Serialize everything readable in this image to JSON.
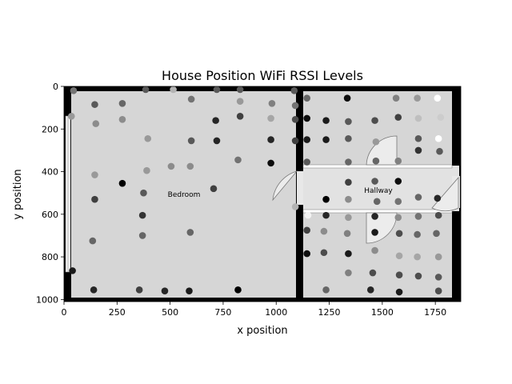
{
  "chart_data": {
    "type": "scatter",
    "title": "House Position WiFi RSSI Levels",
    "xlabel": "x position",
    "ylabel": "y position",
    "xlim": [
      0,
      1870
    ],
    "ylim": [
      1010,
      0
    ],
    "y_axis_inverted": true,
    "xticks": [
      0,
      250,
      500,
      750,
      1000,
      1250,
      1500,
      1750
    ],
    "yticks": [
      0,
      200,
      400,
      600,
      800,
      1000
    ],
    "background": "grayscale floor plan of a house",
    "room_labels": [
      "Bedroom",
      "Hallway"
    ],
    "marker_color_scale": "grayscale (white = strong, black = weak)",
    "points": [
      {
        "x": 45,
        "y": 20,
        "v": 0.45
      },
      {
        "x": 385,
        "y": 15,
        "v": 0.35
      },
      {
        "x": 515,
        "y": 15,
        "v": 0.7
      },
      {
        "x": 720,
        "y": 15,
        "v": 0.35
      },
      {
        "x": 830,
        "y": 15,
        "v": 0.35
      },
      {
        "x": 1085,
        "y": 20,
        "v": 0.35
      },
      {
        "x": 145,
        "y": 85,
        "v": 0.35
      },
      {
        "x": 275,
        "y": 80,
        "v": 0.4
      },
      {
        "x": 600,
        "y": 60,
        "v": 0.45
      },
      {
        "x": 830,
        "y": 70,
        "v": 0.6
      },
      {
        "x": 980,
        "y": 80,
        "v": 0.5
      },
      {
        "x": 1090,
        "y": 90,
        "v": 0.45
      },
      {
        "x": 1145,
        "y": 55,
        "v": 0.4
      },
      {
        "x": 1335,
        "y": 55,
        "v": 0.05
      },
      {
        "x": 1565,
        "y": 55,
        "v": 0.5
      },
      {
        "x": 1665,
        "y": 55,
        "v": 0.6
      },
      {
        "x": 1760,
        "y": 55,
        "v": 1.0
      },
      {
        "x": 35,
        "y": 140,
        "v": 0.6
      },
      {
        "x": 150,
        "y": 175,
        "v": 0.55
      },
      {
        "x": 275,
        "y": 155,
        "v": 0.55
      },
      {
        "x": 715,
        "y": 160,
        "v": 0.15
      },
      {
        "x": 830,
        "y": 140,
        "v": 0.25
      },
      {
        "x": 975,
        "y": 150,
        "v": 0.65
      },
      {
        "x": 1090,
        "y": 155,
        "v": 0.3
      },
      {
        "x": 1145,
        "y": 150,
        "v": 0.05
      },
      {
        "x": 1235,
        "y": 160,
        "v": 0.1
      },
      {
        "x": 1340,
        "y": 165,
        "v": 0.35
      },
      {
        "x": 1465,
        "y": 160,
        "v": 0.3
      },
      {
        "x": 1575,
        "y": 145,
        "v": 0.25
      },
      {
        "x": 1670,
        "y": 150,
        "v": 0.75
      },
      {
        "x": 1775,
        "y": 145,
        "v": 0.8
      },
      {
        "x": 395,
        "y": 245,
        "v": 0.6
      },
      {
        "x": 600,
        "y": 255,
        "v": 0.35
      },
      {
        "x": 720,
        "y": 255,
        "v": 0.15
      },
      {
        "x": 975,
        "y": 250,
        "v": 0.15
      },
      {
        "x": 1090,
        "y": 255,
        "v": 0.25
      },
      {
        "x": 1145,
        "y": 250,
        "v": 0.1
      },
      {
        "x": 1235,
        "y": 250,
        "v": 0.1
      },
      {
        "x": 1340,
        "y": 245,
        "v": 0.35
      },
      {
        "x": 1470,
        "y": 260,
        "v": 0.6
      },
      {
        "x": 1670,
        "y": 245,
        "v": 0.35
      },
      {
        "x": 1765,
        "y": 245,
        "v": 1.0
      },
      {
        "x": 1670,
        "y": 300,
        "v": 0.2
      },
      {
        "x": 1770,
        "y": 305,
        "v": 0.35
      },
      {
        "x": 820,
        "y": 345,
        "v": 0.45
      },
      {
        "x": 975,
        "y": 360,
        "v": 0.05
      },
      {
        "x": 1145,
        "y": 355,
        "v": 0.35
      },
      {
        "x": 1340,
        "y": 355,
        "v": 0.4
      },
      {
        "x": 1470,
        "y": 350,
        "v": 0.4
      },
      {
        "x": 1575,
        "y": 350,
        "v": 0.5
      },
      {
        "x": 505,
        "y": 375,
        "v": 0.55
      },
      {
        "x": 595,
        "y": 375,
        "v": 0.55
      },
      {
        "x": 390,
        "y": 395,
        "v": 0.6
      },
      {
        "x": 145,
        "y": 415,
        "v": 0.6
      },
      {
        "x": 1340,
        "y": 450,
        "v": 0.25
      },
      {
        "x": 1465,
        "y": 445,
        "v": 0.35
      },
      {
        "x": 1575,
        "y": 445,
        "v": 0.05
      },
      {
        "x": 275,
        "y": 455,
        "v": 0.0
      },
      {
        "x": 705,
        "y": 480,
        "v": 0.25
      },
      {
        "x": 375,
        "y": 500,
        "v": 0.35
      },
      {
        "x": 1670,
        "y": 520,
        "v": 0.4
      },
      {
        "x": 1760,
        "y": 525,
        "v": 0.15
      },
      {
        "x": 1475,
        "y": 540,
        "v": 0.4
      },
      {
        "x": 1235,
        "y": 530,
        "v": 0.0
      },
      {
        "x": 1340,
        "y": 530,
        "v": 0.55
      },
      {
        "x": 145,
        "y": 530,
        "v": 0.25
      },
      {
        "x": 1575,
        "y": 540,
        "v": 0.45
      },
      {
        "x": 1090,
        "y": 565,
        "v": 0.7
      },
      {
        "x": 370,
        "y": 605,
        "v": 0.2
      },
      {
        "x": 1150,
        "y": 605,
        "v": 0.95
      },
      {
        "x": 1235,
        "y": 605,
        "v": 0.15
      },
      {
        "x": 1340,
        "y": 615,
        "v": 0.6
      },
      {
        "x": 1465,
        "y": 610,
        "v": 0.15
      },
      {
        "x": 1575,
        "y": 615,
        "v": 0.55
      },
      {
        "x": 1670,
        "y": 610,
        "v": 0.45
      },
      {
        "x": 1765,
        "y": 605,
        "v": 0.3
      },
      {
        "x": 1145,
        "y": 675,
        "v": 0.25
      },
      {
        "x": 1225,
        "y": 680,
        "v": 0.55
      },
      {
        "x": 1335,
        "y": 690,
        "v": 0.5
      },
      {
        "x": 1465,
        "y": 685,
        "v": 0.1
      },
      {
        "x": 1580,
        "y": 690,
        "v": 0.3
      },
      {
        "x": 1665,
        "y": 695,
        "v": 0.4
      },
      {
        "x": 1755,
        "y": 690,
        "v": 0.4
      },
      {
        "x": 595,
        "y": 685,
        "v": 0.4
      },
      {
        "x": 370,
        "y": 700,
        "v": 0.4
      },
      {
        "x": 135,
        "y": 725,
        "v": 0.4
      },
      {
        "x": 1465,
        "y": 770,
        "v": 0.55
      },
      {
        "x": 1145,
        "y": 785,
        "v": 0.05
      },
      {
        "x": 1225,
        "y": 780,
        "v": 0.3
      },
      {
        "x": 1340,
        "y": 785,
        "v": 0.1
      },
      {
        "x": 1580,
        "y": 795,
        "v": 0.65
      },
      {
        "x": 1665,
        "y": 800,
        "v": 0.65
      },
      {
        "x": 1765,
        "y": 800,
        "v": 0.6
      },
      {
        "x": 40,
        "y": 865,
        "v": 0.1
      },
      {
        "x": 1340,
        "y": 875,
        "v": 0.5
      },
      {
        "x": 1455,
        "y": 875,
        "v": 0.3
      },
      {
        "x": 1580,
        "y": 885,
        "v": 0.3
      },
      {
        "x": 1670,
        "y": 890,
        "v": 0.3
      },
      {
        "x": 1765,
        "y": 895,
        "v": 0.35
      },
      {
        "x": 140,
        "y": 955,
        "v": 0.15
      },
      {
        "x": 355,
        "y": 955,
        "v": 0.25
      },
      {
        "x": 475,
        "y": 960,
        "v": 0.15
      },
      {
        "x": 590,
        "y": 960,
        "v": 0.1
      },
      {
        "x": 820,
        "y": 955,
        "v": 0.0
      },
      {
        "x": 1235,
        "y": 955,
        "v": 0.4
      },
      {
        "x": 1445,
        "y": 955,
        "v": 0.15
      },
      {
        "x": 1580,
        "y": 965,
        "v": 0.1
      },
      {
        "x": 1765,
        "y": 960,
        "v": 0.3
      }
    ]
  }
}
